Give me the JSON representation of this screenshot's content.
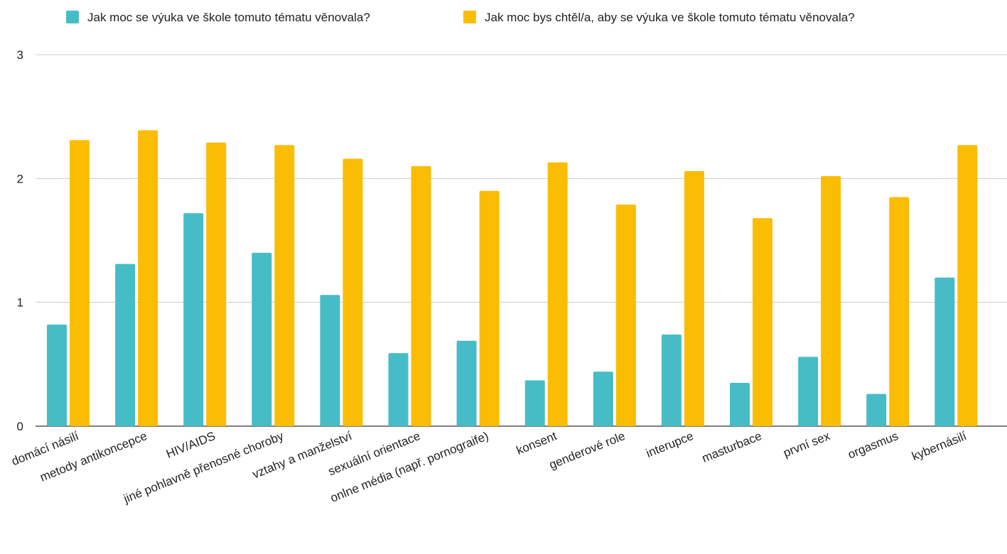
{
  "chart_data": {
    "type": "bar",
    "title": "",
    "xlabel": "",
    "ylabel": "",
    "ylim": [
      0,
      3
    ],
    "yticks": [
      0,
      1,
      2,
      3
    ],
    "grid": true,
    "legend_position": "top",
    "categories": [
      "domácí násilí",
      "metody antikoncepce",
      "HIV/AIDS",
      "jiné pohlavně přenosné choroby",
      "vztahy a manželství",
      "sexuální orientace",
      "onlne média (např. pornograife)",
      "konsent",
      "genderové role",
      "interupce",
      "masturbace",
      "první sex",
      "orgasmus",
      "kybernásilí"
    ],
    "series": [
      {
        "name": "Jak moc se výuka ve škole tomuto tématu věnovala?",
        "color": "#46bdc6",
        "values": [
          0.82,
          1.31,
          1.72,
          1.4,
          1.06,
          0.59,
          0.69,
          0.37,
          0.44,
          0.74,
          0.35,
          0.56,
          0.26,
          1.2
        ]
      },
      {
        "name": "Jak moc bys chtěl/a, aby se výuka ve škole tomuto tématu věnovala?",
        "color": "#fbbc04",
        "values": [
          2.31,
          2.39,
          2.29,
          2.27,
          2.16,
          2.1,
          1.9,
          2.13,
          1.79,
          2.06,
          1.68,
          2.02,
          1.85,
          2.27
        ]
      }
    ]
  }
}
